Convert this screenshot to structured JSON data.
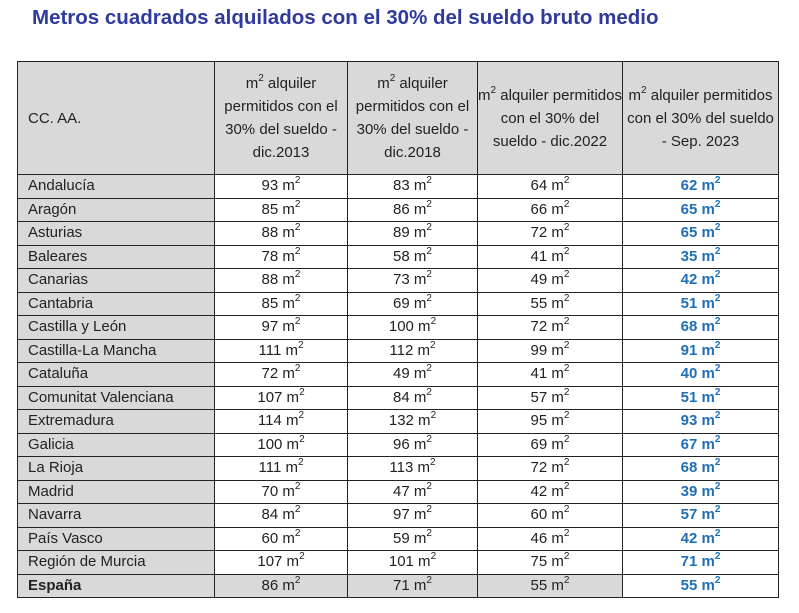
{
  "title": "Metros cuadrados alquilados con el 30% del sueldo bruto medio",
  "colors": {
    "title": "#2f3a9c",
    "highlight": "#1f6fb8",
    "header_bg": "#d9d9d9"
  },
  "unit": "m",
  "unit_exponent": "2",
  "headers": [
    {
      "text": "CC. AA."
    },
    {
      "prefix": "m",
      "sup": "2",
      "text": " alquiler permitidos con el 30% del sueldo - dic.2013"
    },
    {
      "prefix": "m",
      "sup": "2",
      "text": " alquiler permitidos con el 30% del sueldo - dic.2018"
    },
    {
      "prefix": "m",
      "sup": "2",
      "text": " alquiler permitidos con el 30% del sueldo - dic.2022"
    },
    {
      "prefix": "m",
      "sup": "2",
      "text": " alquiler permitidos con el 30% del sueldo - Sep. 2023"
    }
  ],
  "rows": [
    {
      "region": "Andalucía",
      "values": [
        93,
        83,
        64,
        62
      ]
    },
    {
      "region": "Aragón",
      "values": [
        85,
        86,
        66,
        65
      ]
    },
    {
      "region": "Asturias",
      "values": [
        88,
        89,
        72,
        65
      ]
    },
    {
      "region": "Baleares",
      "values": [
        78,
        58,
        41,
        35
      ]
    },
    {
      "region": "Canarias",
      "values": [
        88,
        73,
        49,
        42
      ]
    },
    {
      "region": "Cantabria",
      "values": [
        85,
        69,
        55,
        51
      ]
    },
    {
      "region": "Castilla y León",
      "values": [
        97,
        100,
        72,
        68
      ]
    },
    {
      "region": "Castilla-La Mancha",
      "values": [
        111,
        112,
        99,
        91
      ]
    },
    {
      "region": "Cataluña",
      "values": [
        72,
        49,
        41,
        40
      ]
    },
    {
      "region": "Comunitat Valenciana",
      "values": [
        107,
        84,
        57,
        51
      ]
    },
    {
      "region": "Extremadura",
      "values": [
        114,
        132,
        95,
        93
      ]
    },
    {
      "region": "Galicia",
      "values": [
        100,
        96,
        69,
        67
      ]
    },
    {
      "region": "La Rioja",
      "values": [
        111,
        113,
        72,
        68
      ]
    },
    {
      "region": "Madrid",
      "values": [
        70,
        47,
        42,
        39
      ]
    },
    {
      "region": "Navarra",
      "values": [
        84,
        97,
        60,
        57
      ]
    },
    {
      "region": "País Vasco",
      "values": [
        60,
        59,
        46,
        42
      ]
    },
    {
      "region": "Región de Murcia",
      "values": [
        107,
        101,
        75,
        71
      ]
    }
  ],
  "total": {
    "region": "España",
    "values": [
      86,
      71,
      55,
      55
    ]
  }
}
